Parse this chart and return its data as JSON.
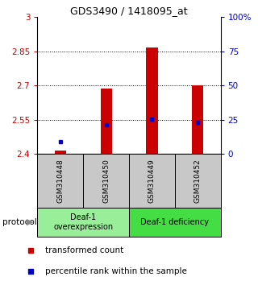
{
  "title": "GDS3490 / 1418095_at",
  "samples": [
    "GSM310448",
    "GSM310450",
    "GSM310449",
    "GSM310452"
  ],
  "red_tops": [
    2.415,
    2.685,
    2.865,
    2.7
  ],
  "red_base": 2.4,
  "blue_values": [
    2.455,
    2.527,
    2.552,
    2.537
  ],
  "ylim": [
    2.4,
    3.0
  ],
  "yticks_left": [
    2.4,
    2.55,
    2.7,
    2.85,
    3.0
  ],
  "yticks_left_labels": [
    "2.4",
    "2.55",
    "2.7",
    "2.85",
    "3"
  ],
  "yticks_right_pct": [
    0,
    25,
    50,
    75,
    100
  ],
  "yticks_right_labels": [
    "0",
    "25",
    "50",
    "75",
    "100%"
  ],
  "groups": [
    {
      "label": "Deaf-1\noverexpression",
      "cols": [
        0,
        1
      ],
      "color": "#99EE99"
    },
    {
      "label": "Deaf-1 deficiency",
      "cols": [
        2,
        3
      ],
      "color": "#44DD44"
    }
  ],
  "red_color": "#CC0000",
  "blue_color": "#0000CC",
  "bar_width": 0.25,
  "sample_bg": "#C8C8C8",
  "legend_red": "transformed count",
  "legend_blue": "percentile rank within the sample",
  "protocol_label": "protocol",
  "left_tick_color": "#CC0000",
  "right_tick_color": "#0000CC",
  "grid_yticks": [
    2.55,
    2.7,
    2.85
  ]
}
